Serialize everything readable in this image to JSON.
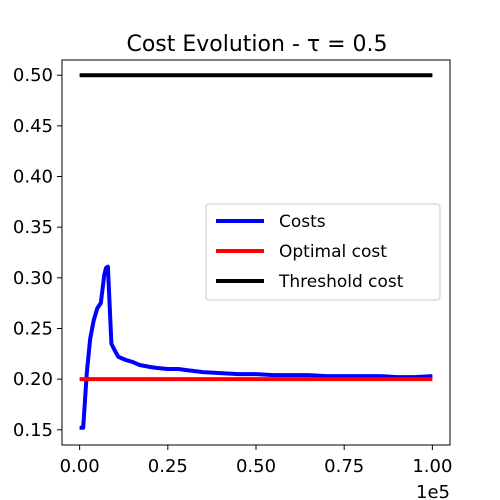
{
  "chart_data": {
    "type": "line",
    "title": "Cost Evolution - τ = 0.5",
    "xlabel": "",
    "ylabel": "",
    "x_offset_label": "1e5",
    "xlim": [
      -0.05,
      1.05
    ],
    "ylim": [
      0.135,
      0.515
    ],
    "x_ticks": [
      0.0,
      0.25,
      0.5,
      0.75,
      1.0
    ],
    "x_tick_labels": [
      "0.00",
      "0.25",
      "0.50",
      "0.75",
      "1.00"
    ],
    "y_ticks": [
      0.15,
      0.2,
      0.25,
      0.3,
      0.35,
      0.4,
      0.45,
      0.5
    ],
    "y_tick_labels": [
      "0.15",
      "0.20",
      "0.25",
      "0.30",
      "0.35",
      "0.40",
      "0.45",
      "0.50"
    ],
    "grid": false,
    "legend_position": "center-right",
    "series": [
      {
        "name": "Costs",
        "color": "#0000ff",
        "x": [
          0.0,
          0.01,
          0.02,
          0.03,
          0.04,
          0.05,
          0.06,
          0.07,
          0.075,
          0.08,
          0.09,
          0.1,
          0.11,
          0.13,
          0.15,
          0.17,
          0.2,
          0.22,
          0.25,
          0.28,
          0.3,
          0.35,
          0.4,
          0.45,
          0.5,
          0.55,
          0.6,
          0.65,
          0.7,
          0.75,
          0.8,
          0.85,
          0.9,
          0.95,
          1.0
        ],
        "y": [
          0.152,
          0.152,
          0.205,
          0.24,
          0.258,
          0.27,
          0.275,
          0.303,
          0.31,
          0.311,
          0.235,
          0.228,
          0.222,
          0.219,
          0.217,
          0.214,
          0.212,
          0.211,
          0.21,
          0.21,
          0.209,
          0.207,
          0.206,
          0.205,
          0.205,
          0.204,
          0.204,
          0.204,
          0.203,
          0.203,
          0.203,
          0.203,
          0.202,
          0.202,
          0.203
        ]
      },
      {
        "name": "Optimal cost",
        "color": "#ff0000",
        "x": [
          0.0,
          1.0
        ],
        "y": [
          0.2,
          0.2
        ]
      },
      {
        "name": "Threshold cost",
        "color": "#000000",
        "x": [
          0.0,
          1.0
        ],
        "y": [
          0.5,
          0.5
        ]
      }
    ]
  }
}
